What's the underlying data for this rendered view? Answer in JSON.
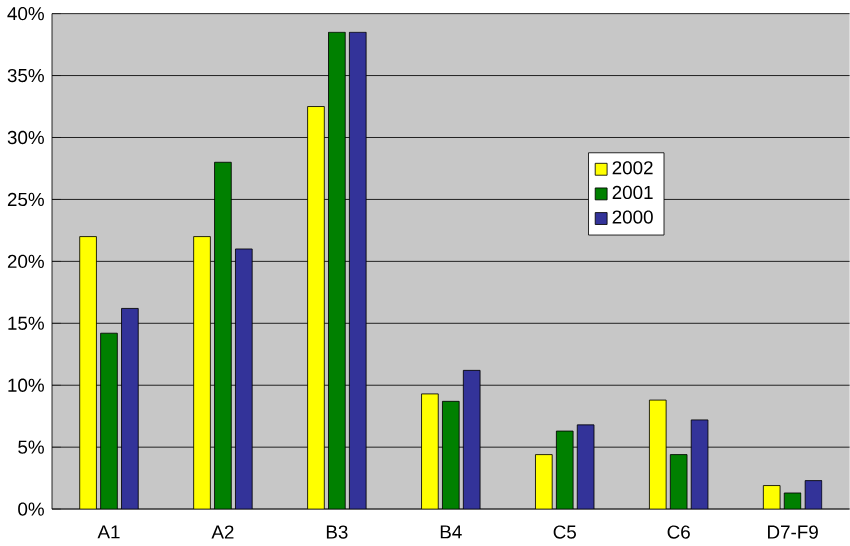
{
  "chart_data": {
    "type": "bar",
    "categories": [
      "A1",
      "A2",
      "B3",
      "B4",
      "C5",
      "C6",
      "D7-F9"
    ],
    "series": [
      {
        "name": "2002",
        "color": "#ffff00",
        "values": [
          22,
          22,
          32.5,
          9.3,
          4.4,
          8.8,
          1.9
        ]
      },
      {
        "name": "2001",
        "color": "#008000",
        "values": [
          14.2,
          28,
          38.5,
          8.7,
          6.3,
          4.4,
          1.3
        ]
      },
      {
        "name": "2000",
        "color": "#333399",
        "values": [
          16.2,
          21,
          38.5,
          11.2,
          6.8,
          7.2,
          2.3
        ]
      }
    ],
    "ylim": [
      0,
      40
    ],
    "yticks": [
      {
        "value": 0,
        "label": "0%"
      },
      {
        "value": 5,
        "label": "5%"
      },
      {
        "value": 10,
        "label": "10%"
      },
      {
        "value": 15,
        "label": "15%"
      },
      {
        "value": 20,
        "label": "20%"
      },
      {
        "value": 25,
        "label": "25%"
      },
      {
        "value": 30,
        "label": "30%"
      },
      {
        "value": 35,
        "label": "35%"
      },
      {
        "value": 40,
        "label": "40%"
      }
    ],
    "grid": "y",
    "legend": "right"
  }
}
